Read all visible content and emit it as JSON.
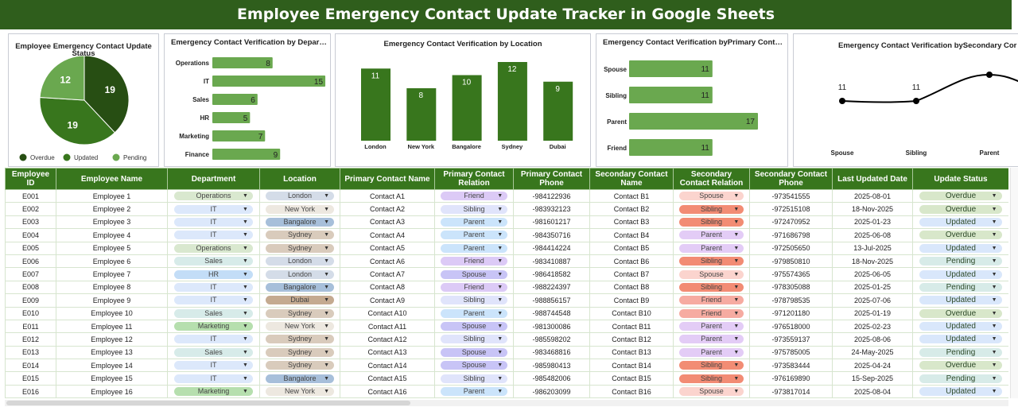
{
  "title": "Employee Emergency Contact Update Tracker in Google Sheets",
  "colors": {
    "title_bg": "#2f5e1c",
    "header_bg": "#38761d",
    "bar_light": "#6aa84f",
    "bar_dark": "#38761d",
    "pie": [
      "#274e13",
      "#38761d",
      "#6aa84f"
    ]
  },
  "chart_data": [
    {
      "type": "pie",
      "title": "Employee Emergency Contact Update Status",
      "categories": [
        "Overdue",
        "Updated",
        "Pending"
      ],
      "values": [
        19,
        19,
        12
      ],
      "legend": "bottom"
    },
    {
      "type": "bar",
      "orientation": "horizontal",
      "title": "Emergency Contact Verification by Depart...",
      "categories": [
        "Operations",
        "IT",
        "Sales",
        "HR",
        "Marketing",
        "Finance"
      ],
      "values": [
        8,
        15,
        6,
        5,
        7,
        9
      ]
    },
    {
      "type": "bar",
      "title": "Emergency Contact Verification by Location",
      "categories": [
        "London",
        "New York",
        "Bangalore",
        "Sydney",
        "Dubai"
      ],
      "values": [
        11,
        8,
        10,
        12,
        9
      ]
    },
    {
      "type": "bar",
      "orientation": "horizontal",
      "title": "Emergency Contact Verification byPrimary Conta...",
      "categories": [
        "Spouse",
        "Sibling",
        "Parent",
        "Friend"
      ],
      "values": [
        11,
        11,
        17,
        11
      ]
    },
    {
      "type": "line",
      "title": "Emergency Contact Verification bySecondary Cor",
      "categories": [
        "Spouse",
        "Sibling",
        "Parent"
      ],
      "values": [
        11,
        11,
        14
      ],
      "data_labels": [
        "11",
        "11",
        ""
      ]
    }
  ],
  "table": {
    "headers": [
      "Employee ID",
      "Employee Name",
      "Department",
      "Location",
      "Primary Contact Name",
      "Primary Contact Relation",
      "Primary Contact Phone",
      "Secondary Contact Name",
      "Secondary Contact Relation",
      "Secondary Contact Phone",
      "Last Updated Date",
      "Update Status"
    ],
    "chip_colors": {
      "dept": {
        "Operations": "#d9e8cf",
        "IT": "#dce8fb",
        "Sales": "#d7ebe9",
        "HR": "#c3ddf7",
        "Marketing": "#b6dfae",
        "Finance": "#e6e6e6"
      },
      "loc": {
        "London": "#d4dce8",
        "New York": "#ede8e0",
        "Bangalore": "#a7bfda",
        "Sydney": "#d9cbbc",
        "Dubai": "#c4aa90"
      },
      "prel": {
        "Friend": "#dccaf6",
        "Sibling": "#e0e4fb",
        "Parent": "#cbe4fb",
        "Spouse": "#c8c4f6"
      },
      "srel": {
        "Spouse": "#fbd4ce",
        "Sibling": "#f28c74",
        "Parent": "#e3ccf6",
        "Friend": "#f6aba1"
      },
      "status": {
        "Overdue": "#d8e7ca",
        "Updated": "#d9e7fb",
        "Pending": "#d7ebe8"
      }
    },
    "rows": [
      [
        "E001",
        "Employee 1",
        "Operations",
        "London",
        "Contact A1",
        "Friend",
        "-984122936",
        "Contact B1",
        "Spouse",
        "-973541555",
        "2025-08-01",
        "Overdue"
      ],
      [
        "E002",
        "Employee 2",
        "IT",
        "New York",
        "Contact A2",
        "Sibling",
        "-983932123",
        "Contact B2",
        "Sibling",
        "-972515108",
        "18-Nov-2025",
        "Overdue"
      ],
      [
        "E003",
        "Employee 3",
        "IT",
        "Bangalore",
        "Contact A3",
        "Parent",
        "-981601217",
        "Contact B3",
        "Sibling",
        "-972470952",
        "2025-01-23",
        "Updated"
      ],
      [
        "E004",
        "Employee 4",
        "IT",
        "Sydney",
        "Contact A4",
        "Parent",
        "-984350716",
        "Contact B4",
        "Parent",
        "-971686798",
        "2025-06-08",
        "Overdue"
      ],
      [
        "E005",
        "Employee 5",
        "Operations",
        "Sydney",
        "Contact A5",
        "Parent",
        "-984414224",
        "Contact B5",
        "Parent",
        "-972505650",
        "13-Jul-2025",
        "Updated"
      ],
      [
        "E006",
        "Employee 6",
        "Sales",
        "London",
        "Contact A6",
        "Friend",
        "-983410887",
        "Contact B6",
        "Sibling",
        "-979850810",
        "18-Nov-2025",
        "Pending"
      ],
      [
        "E007",
        "Employee 7",
        "HR",
        "London",
        "Contact A7",
        "Spouse",
        "-986418582",
        "Contact B7",
        "Spouse",
        "-975574365",
        "2025-06-05",
        "Updated"
      ],
      [
        "E008",
        "Employee 8",
        "IT",
        "Bangalore",
        "Contact A8",
        "Friend",
        "-988224397",
        "Contact B8",
        "Sibling",
        "-978305088",
        "2025-01-25",
        "Pending"
      ],
      [
        "E009",
        "Employee 9",
        "IT",
        "Dubai",
        "Contact A9",
        "Sibling",
        "-988856157",
        "Contact B9",
        "Friend",
        "-978798535",
        "2025-07-06",
        "Updated"
      ],
      [
        "E010",
        "Employee 10",
        "Sales",
        "Sydney",
        "Contact A10",
        "Parent",
        "-988744548",
        "Contact B10",
        "Friend",
        "-971201180",
        "2025-01-19",
        "Overdue"
      ],
      [
        "E011",
        "Employee 11",
        "Marketing",
        "New York",
        "Contact A11",
        "Spouse",
        "-981300086",
        "Contact B11",
        "Parent",
        "-976518000",
        "2025-02-23",
        "Updated"
      ],
      [
        "E012",
        "Employee 12",
        "IT",
        "Sydney",
        "Contact A12",
        "Sibling",
        "-985598202",
        "Contact B12",
        "Parent",
        "-973559137",
        "2025-08-06",
        "Updated"
      ],
      [
        "E013",
        "Employee 13",
        "Sales",
        "Sydney",
        "Contact A13",
        "Spouse",
        "-983468816",
        "Contact B13",
        "Parent",
        "-975785005",
        "24-May-2025",
        "Pending"
      ],
      [
        "E014",
        "Employee 14",
        "IT",
        "Sydney",
        "Contact A14",
        "Spouse",
        "-985980413",
        "Contact B14",
        "Sibling",
        "-973583444",
        "2025-04-24",
        "Overdue"
      ],
      [
        "E015",
        "Employee 15",
        "IT",
        "Bangalore",
        "Contact A15",
        "Sibling",
        "-985482006",
        "Contact B15",
        "Sibling",
        "-976169890",
        "15-Sep-2025",
        "Pending"
      ],
      [
        "E016",
        "Employee 16",
        "Marketing",
        "New York",
        "Contact A16",
        "Parent",
        "-986203099",
        "Contact B16",
        "Spouse",
        "-973817014",
        "2025-08-04",
        "Updated"
      ]
    ]
  }
}
